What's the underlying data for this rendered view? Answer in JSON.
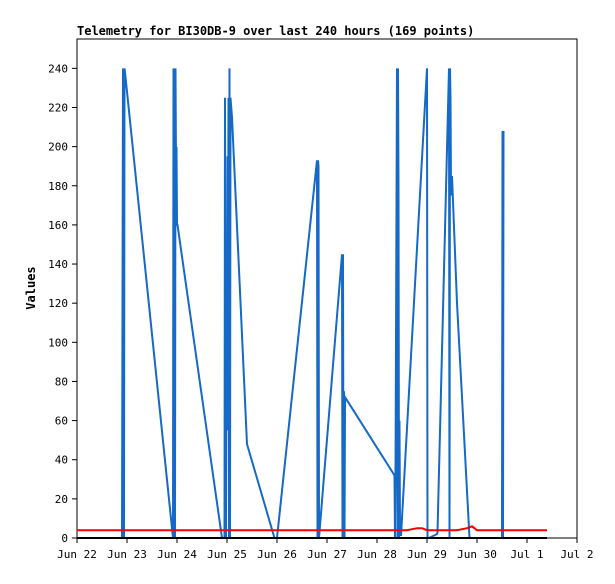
{
  "chart_data": {
    "type": "line",
    "title": "Telemetry for BI30DB-9 over last 240 hours (169 points)",
    "xlabel": "",
    "ylabel": "Values",
    "x_ticks": [
      "Jun 22",
      "Jun 23",
      "Jun 24",
      "Jun 25",
      "Jun 26",
      "Jun 27",
      "Jun 28",
      "Jun 29",
      "Jun 30",
      "Jul 1",
      "Jul 2"
    ],
    "xlim": [
      0,
      10
    ],
    "ylim": [
      0,
      255
    ],
    "y_ticks": [
      0,
      20,
      40,
      60,
      80,
      100,
      120,
      140,
      160,
      180,
      200,
      220,
      240
    ],
    "grid": false,
    "legend": "none",
    "colors": {
      "series_blue": "#1569c7",
      "series_red": "#ee0000",
      "series_black": "#000000",
      "axis": "#000000"
    },
    "series": [
      {
        "color": "#1569c7",
        "x": [
          0.9,
          0.92,
          0.93,
          0.94,
          0.95,
          0.96,
          1.92,
          1.93,
          1.94,
          1.95,
          1.96,
          1.97,
          1.98,
          1.99,
          2.0,
          2.01,
          2.9,
          2.95,
          2.96,
          2.98,
          2.99,
          3.0,
          3.01,
          3.02,
          3.03,
          3.04,
          3.05,
          3.06,
          3.07,
          3.1,
          3.4,
          3.95,
          4.0,
          4.8,
          4.81,
          4.82,
          4.83,
          4.84,
          5.3,
          5.31,
          5.32,
          5.33,
          5.34,
          5.35,
          5.36,
          6.35,
          6.36,
          6.37,
          6.4,
          6.41,
          6.42,
          6.43,
          6.44,
          6.45,
          6.46,
          6.47,
          6.48,
          7.0,
          7.01,
          7.02,
          7.03,
          7.04,
          7.2,
          7.21,
          7.44,
          7.45,
          7.46,
          7.47,
          7.48,
          7.5,
          7.6,
          7.85,
          7.9,
          8.5,
          8.51,
          8.52,
          8.53
        ],
        "y": [
          0,
          240,
          230,
          0,
          240,
          238,
          0,
          240,
          5,
          240,
          0,
          240,
          190,
          200,
          160,
          160,
          0,
          0,
          225,
          0,
          120,
          55,
          195,
          120,
          225,
          0,
          240,
          0,
          225,
          215,
          48,
          0,
          0,
          193,
          0,
          193,
          190,
          0,
          145,
          0,
          145,
          0,
          75,
          0,
          72,
          32,
          0,
          32,
          240,
          0,
          240,
          180,
          0,
          60,
          5,
          2,
          1,
          240,
          0,
          0,
          0,
          0,
          2,
          3,
          240,
          0,
          240,
          225,
          175,
          185,
          120,
          0,
          0,
          0,
          208,
          0,
          208
        ]
      },
      {
        "color": "#ee0000",
        "x": [
          0,
          6.4,
          6.6,
          6.8,
          6.9,
          7.0,
          7.6,
          7.8,
          7.9,
          8.0,
          9.4
        ],
        "y": [
          4,
          4,
          4,
          5,
          5,
          4,
          4,
          5,
          6,
          4,
          4
        ]
      },
      {
        "color": "#000000",
        "x": [
          0,
          9.4
        ],
        "y": [
          0,
          0
        ]
      }
    ]
  }
}
